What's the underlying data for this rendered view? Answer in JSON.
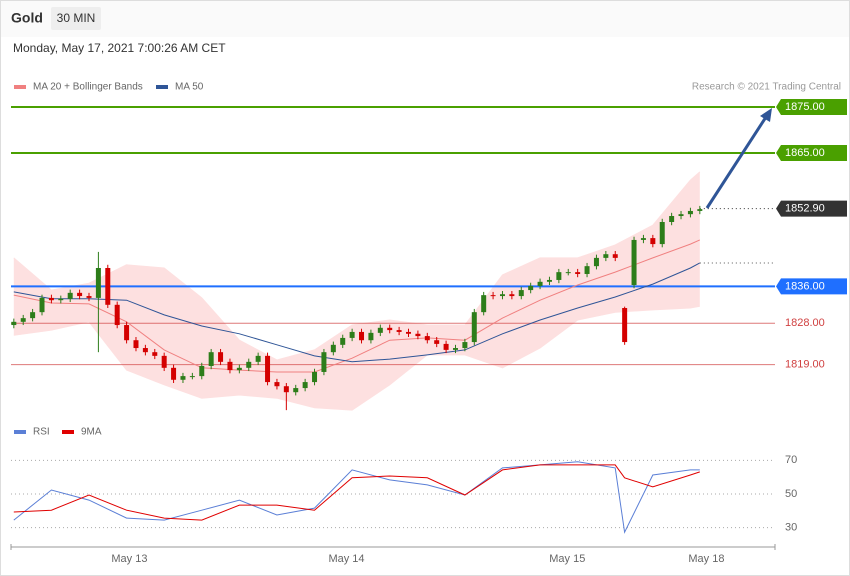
{
  "header": {
    "symbol": "Gold",
    "interval": "30 MIN",
    "timestamp": "Monday, May 17, 2021 7:00:26 AM CET",
    "source": "Research © 2021 Trading Central"
  },
  "chart_data": [
    {
      "type": "candlestick",
      "xlim": [
        -0.3,
        81
      ],
      "ylim": [
        1808,
        1878
      ],
      "up_color": "#2d7d1a",
      "down_color": "#d40000",
      "open": [
        1827.6,
        1828.3,
        1829.1,
        1830.4,
        1833.5,
        1833.0,
        1833.3,
        1834.6,
        1833.9,
        1833.5,
        1840.0,
        1832.0,
        1827.6,
        1824.3,
        1822.6,
        1821.7,
        1820.9,
        1818.3,
        1815.7,
        1816.5,
        1816.5,
        1818.7,
        1821.7,
        1819.6,
        1817.8,
        1818.3,
        1819.6,
        1820.9,
        1815.2,
        1814.3,
        1813.0,
        1813.9,
        1815.2,
        1817.4,
        1821.7,
        1823.3,
        1824.8,
        1826.1,
        1824.3,
        1825.9,
        1827.0,
        1826.5,
        1826.1,
        1825.7,
        1825.2,
        1824.3,
        1823.5,
        1822.2,
        1822.6,
        1823.9,
        1830.4,
        1834.1,
        1833.9,
        1834.3,
        1833.9,
        1835.2,
        1836.1,
        1837.0,
        1837.4,
        1839.1,
        1839.1,
        1838.7,
        1840.4,
        1842.2,
        1843.0,
        1831.3,
        1836.3,
        1846.1,
        1846.5,
        1845.2,
        1850.0,
        1851.3,
        1851.7,
        1852.4
      ],
      "high": [
        1829.0,
        1829.8,
        1831.1,
        1834.2,
        1834.2,
        1834.0,
        1835.3,
        1835.3,
        1834.6,
        1843.5,
        1840.7,
        1832.7,
        1828.3,
        1825.0,
        1823.3,
        1822.4,
        1821.6,
        1819.0,
        1817.2,
        1817.2,
        1819.4,
        1822.4,
        1822.4,
        1820.3,
        1819.0,
        1820.3,
        1821.6,
        1821.6,
        1815.9,
        1815.0,
        1814.6,
        1815.9,
        1818.1,
        1822.4,
        1824.0,
        1825.5,
        1826.8,
        1826.8,
        1826.6,
        1827.7,
        1827.7,
        1827.2,
        1826.8,
        1826.4,
        1825.9,
        1825.0,
        1824.2,
        1823.3,
        1824.6,
        1831.1,
        1834.8,
        1834.8,
        1835.0,
        1835.0,
        1835.9,
        1836.8,
        1837.7,
        1838.1,
        1839.8,
        1839.8,
        1839.8,
        1841.1,
        1842.9,
        1843.7,
        1843.7,
        1831.6,
        1846.8,
        1847.2,
        1847.2,
        1850.7,
        1852.0,
        1852.4,
        1853.1,
        1853.5
      ],
      "low": [
        1826.9,
        1827.6,
        1828.4,
        1829.7,
        1832.3,
        1832.3,
        1832.6,
        1833.2,
        1832.8,
        1821.7,
        1831.3,
        1826.9,
        1823.6,
        1821.9,
        1821.0,
        1820.2,
        1817.6,
        1815.0,
        1815.0,
        1815.8,
        1815.8,
        1818.0,
        1818.9,
        1817.1,
        1817.1,
        1817.6,
        1818.9,
        1814.5,
        1813.6,
        1809.1,
        1812.3,
        1813.2,
        1814.5,
        1816.7,
        1821.0,
        1822.6,
        1824.1,
        1823.6,
        1823.6,
        1825.2,
        1825.8,
        1825.4,
        1825.0,
        1824.5,
        1823.6,
        1822.8,
        1821.5,
        1821.5,
        1821.9,
        1823.2,
        1829.7,
        1833.2,
        1833.2,
        1833.2,
        1833.2,
        1834.5,
        1835.4,
        1836.3,
        1836.7,
        1838.4,
        1838.0,
        1838.0,
        1839.7,
        1841.5,
        1841.5,
        1823.3,
        1835.6,
        1845.4,
        1844.5,
        1844.5,
        1849.3,
        1850.6,
        1851.0,
        1851.7
      ],
      "close": [
        1828.3,
        1829.1,
        1830.4,
        1833.5,
        1833.0,
        1833.3,
        1834.6,
        1833.9,
        1833.5,
        1840.0,
        1832.0,
        1827.6,
        1824.3,
        1822.6,
        1821.7,
        1820.9,
        1818.3,
        1815.7,
        1816.5,
        1816.5,
        1818.7,
        1821.7,
        1819.6,
        1817.8,
        1818.3,
        1819.6,
        1820.9,
        1815.2,
        1814.3,
        1813.0,
        1813.9,
        1815.2,
        1817.4,
        1821.7,
        1823.3,
        1824.8,
        1826.1,
        1824.3,
        1825.9,
        1827.0,
        1826.5,
        1826.1,
        1825.7,
        1825.2,
        1824.3,
        1823.5,
        1822.2,
        1822.6,
        1823.9,
        1830.4,
        1834.1,
        1833.9,
        1834.3,
        1833.9,
        1835.2,
        1836.1,
        1837.0,
        1837.4,
        1839.1,
        1839.1,
        1838.7,
        1840.4,
        1842.2,
        1843.0,
        1842.2,
        1823.9,
        1846.1,
        1846.5,
        1845.2,
        1850.0,
        1851.3,
        1851.7,
        1852.4,
        1852.8
      ],
      "overlays": [
        {
          "name": "MA 20 + Bollinger Bands",
          "color": "#f08080",
          "band_color": "#fde0e0",
          "x": [
            0,
            4,
            8,
            12,
            16,
            20,
            24,
            28,
            32,
            36,
            40,
            44,
            48,
            52,
            56,
            60,
            64,
            68,
            72,
            73
          ],
          "values": [
            1834.1,
            1832.4,
            1832.2,
            1828.3,
            1822.2,
            1818.3,
            1817.8,
            1817.4,
            1817.4,
            1820.4,
            1824.3,
            1824.8,
            1824.3,
            1829.1,
            1833.0,
            1836.3,
            1839.1,
            1842.2,
            1845.2,
            1846.1
          ],
          "upper": [
            1842.2,
            1835.2,
            1836.7,
            1840.7,
            1840.0,
            1833.5,
            1824.3,
            1820.0,
            1822.2,
            1827.6,
            1828.7,
            1827.6,
            1827.6,
            1838.5,
            1842.2,
            1842.2,
            1845.0,
            1849.3,
            1859.1,
            1860.9
          ],
          "lower": [
            1825.4,
            1826.5,
            1828.3,
            1817.8,
            1814.6,
            1811.7,
            1812.4,
            1811.7,
            1809.6,
            1809.1,
            1814.6,
            1821.1,
            1821.1,
            1818.3,
            1822.6,
            1828.7,
            1830.4,
            1830.9,
            1831.3,
            1831.7
          ]
        },
        {
          "name": "MA 50",
          "color": "#2f5597",
          "x": [
            0,
            4,
            8,
            12,
            16,
            20,
            24,
            28,
            32,
            36,
            40,
            44,
            48,
            52,
            56,
            60,
            64,
            68,
            72,
            73
          ],
          "values": [
            1834.8,
            1833.3,
            1833.3,
            1833.0,
            1829.8,
            1827.4,
            1825.7,
            1823.3,
            1820.9,
            1819.6,
            1820.2,
            1821.1,
            1822.2,
            1825.7,
            1828.7,
            1831.3,
            1833.7,
            1836.5,
            1840.0,
            1841.1
          ]
        }
      ],
      "levels": [
        {
          "value": 1875,
          "label": "1875.00",
          "color": "#4aa000",
          "style": "box",
          "line": "solid"
        },
        {
          "value": 1865,
          "label": "1865.00",
          "color": "#4aa000",
          "style": "box",
          "line": "solid"
        },
        {
          "value": 1852.9,
          "label": "1852.90",
          "color": "#333333",
          "style": "box",
          "line": "dotted"
        },
        {
          "value": 1836,
          "label": "1836.00",
          "color": "#1f6fff",
          "style": "box",
          "line": "solid"
        },
        {
          "value": 1828,
          "label": "1828.00",
          "color": "#d04040",
          "style": "text",
          "line": "solid"
        },
        {
          "value": 1819,
          "label": "1819.00",
          "color": "#d04040",
          "style": "text",
          "line": "solid"
        }
      ]
    },
    {
      "type": "line",
      "xlim": [
        -0.3,
        81
      ],
      "ylim": [
        20,
        80
      ],
      "yticks": [
        30,
        50,
        70
      ],
      "xticks": [
        {
          "value": 12.3,
          "label": "May 13"
        },
        {
          "value": 35.4,
          "label": "May 14"
        },
        {
          "value": 58.9,
          "label": "May 15"
        },
        {
          "value": 73.7,
          "label": "May 18"
        }
      ],
      "x": [
        0,
        4,
        8,
        12,
        16,
        20,
        24,
        28,
        32,
        36,
        40,
        44,
        48,
        52,
        56,
        60,
        64,
        65,
        68,
        72,
        73
      ],
      "series": [
        {
          "name": "RSI",
          "color": "#5b7fd6",
          "values": [
            34.5,
            52.4,
            46.4,
            35.7,
            34.5,
            40.4,
            46.4,
            37.5,
            41.6,
            64.3,
            58.4,
            55.4,
            49.4,
            65.5,
            67.3,
            69.1,
            65.5,
            27.3,
            61.3,
            64.3,
            64.3
          ]
        },
        {
          "name": "9MA",
          "color": "#e00000",
          "values": [
            39.3,
            40.4,
            49.4,
            40.4,
            35.7,
            34.5,
            43.4,
            43.4,
            40.4,
            59.6,
            60.7,
            59.6,
            49.4,
            64.3,
            67.3,
            67.3,
            67.3,
            59.6,
            54.2,
            61.3,
            63.1
          ]
        }
      ]
    }
  ]
}
